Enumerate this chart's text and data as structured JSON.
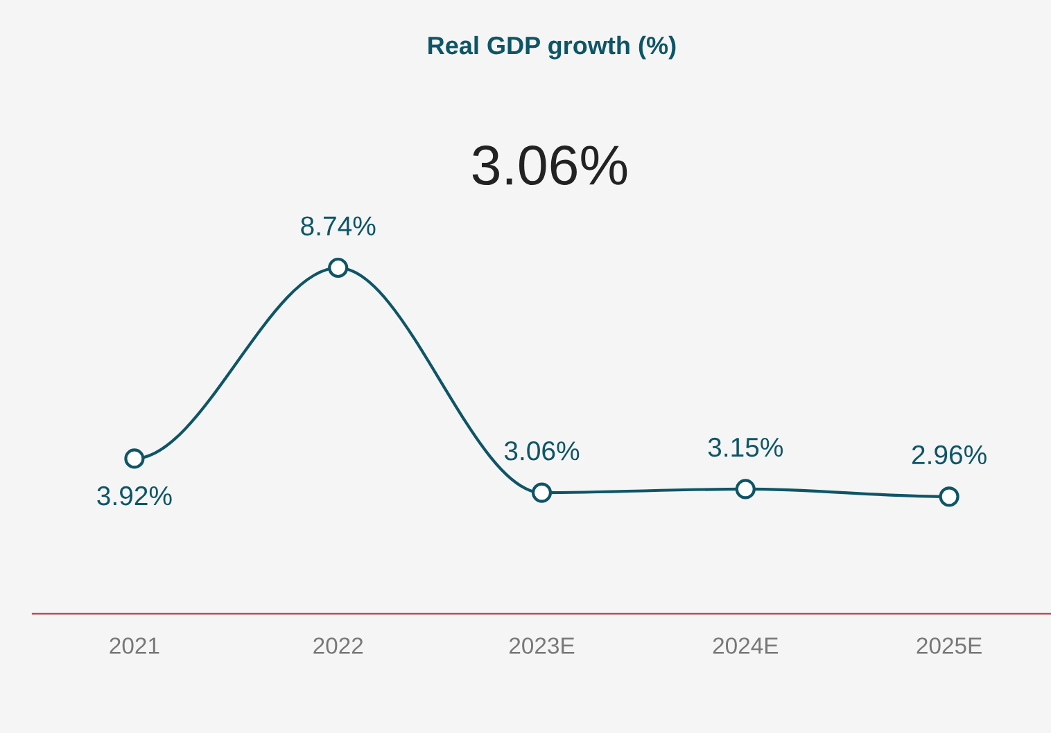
{
  "chart_data": {
    "type": "line",
    "title": "Real GDP growth (%)",
    "annotations": [
      "3.06%"
    ],
    "categories": [
      "2021",
      "2022",
      "2023E",
      "2024E",
      "2025E"
    ],
    "series": [
      {
        "color": "#0e5566",
        "values": [
          3.92,
          8.74,
          3.06,
          3.15,
          2.96
        ],
        "value_labels": [
          "3.92%",
          "8.74%",
          "3.06%",
          "3.15%",
          "2.96%"
        ]
      }
    ],
    "tick_labels": "x",
    "grid": false,
    "legend": false,
    "marker": "circle",
    "line_style": "solid"
  }
}
